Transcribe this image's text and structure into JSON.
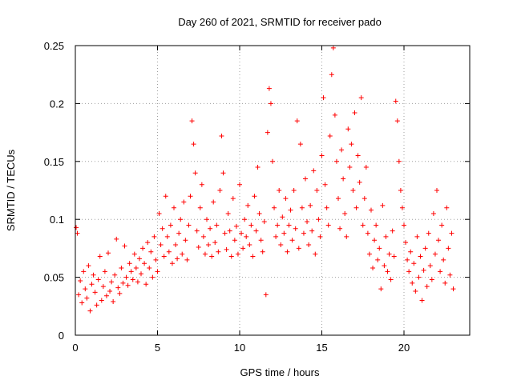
{
  "chart_data": {
    "type": "scatter",
    "title": "Day 260 of 2021, SRMTID for receiver pado",
    "xlabel": "GPS time / hours",
    "ylabel": "SRMTID / TECUs",
    "xlim": [
      0,
      24
    ],
    "ylim": [
      0,
      0.25
    ],
    "xticks": [
      0,
      5,
      10,
      15,
      20
    ],
    "xtick_labels": [
      "0",
      "5",
      "10",
      "15",
      "20"
    ],
    "yticks": [
      0,
      0.05,
      0.1,
      0.15,
      0.2,
      0.25
    ],
    "ytick_labels": [
      "0",
      "0.05",
      "0.1",
      "0.15",
      "0.2",
      "0.25"
    ],
    "grid": true,
    "marker": "+",
    "point_color": "#ff0000",
    "series": [
      {
        "name": "SRMTID",
        "points": [
          [
            0.05,
            0.093
          ],
          [
            0.12,
            0.088
          ],
          [
            0.2,
            0.035
          ],
          [
            0.3,
            0.047
          ],
          [
            0.4,
            0.028
          ],
          [
            0.5,
            0.055
          ],
          [
            0.6,
            0.04
          ],
          [
            0.7,
            0.032
          ],
          [
            0.8,
            0.06
          ],
          [
            0.9,
            0.021
          ],
          [
            1.0,
            0.044
          ],
          [
            1.1,
            0.052
          ],
          [
            1.2,
            0.037
          ],
          [
            1.3,
            0.026
          ],
          [
            1.4,
            0.048
          ],
          [
            1.5,
            0.068
          ],
          [
            1.6,
            0.03
          ],
          [
            1.7,
            0.042
          ],
          [
            1.8,
            0.055
          ],
          [
            1.9,
            0.034
          ],
          [
            2.0,
            0.071
          ],
          [
            2.1,
            0.038
          ],
          [
            2.2,
            0.046
          ],
          [
            2.3,
            0.029
          ],
          [
            2.4,
            0.052
          ],
          [
            2.5,
            0.083
          ],
          [
            2.6,
            0.041
          ],
          [
            2.7,
            0.036
          ],
          [
            2.8,
            0.058
          ],
          [
            2.9,
            0.045
          ],
          [
            3.0,
            0.077
          ],
          [
            3.1,
            0.05
          ],
          [
            3.2,
            0.043
          ],
          [
            3.3,
            0.062
          ],
          [
            3.4,
            0.055
          ],
          [
            3.5,
            0.048
          ],
          [
            3.6,
            0.07
          ],
          [
            3.7,
            0.058
          ],
          [
            3.8,
            0.046
          ],
          [
            3.9,
            0.066
          ],
          [
            4.0,
            0.053
          ],
          [
            4.1,
            0.075
          ],
          [
            4.2,
            0.062
          ],
          [
            4.3,
            0.044
          ],
          [
            4.4,
            0.08
          ],
          [
            4.5,
            0.058
          ],
          [
            4.6,
            0.072
          ],
          [
            4.7,
            0.05
          ],
          [
            4.8,
            0.085
          ],
          [
            4.9,
            0.065
          ],
          [
            5.0,
            0.055
          ],
          [
            5.1,
            0.105
          ],
          [
            5.2,
            0.078
          ],
          [
            5.3,
            0.092
          ],
          [
            5.4,
            0.068
          ],
          [
            5.5,
            0.12
          ],
          [
            5.6,
            0.085
          ],
          [
            5.7,
            0.072
          ],
          [
            5.8,
            0.095
          ],
          [
            5.9,
            0.062
          ],
          [
            6.0,
            0.11
          ],
          [
            6.1,
            0.078
          ],
          [
            6.2,
            0.066
          ],
          [
            6.3,
            0.088
          ],
          [
            6.4,
            0.1
          ],
          [
            6.5,
            0.07
          ],
          [
            6.6,
            0.115
          ],
          [
            6.7,
            0.082
          ],
          [
            6.8,
            0.065
          ],
          [
            6.9,
            0.095
          ],
          [
            7.0,
            0.12
          ],
          [
            7.1,
            0.185
          ],
          [
            7.2,
            0.165
          ],
          [
            7.3,
            0.14
          ],
          [
            7.4,
            0.09
          ],
          [
            7.5,
            0.076
          ],
          [
            7.6,
            0.11
          ],
          [
            7.7,
            0.13
          ],
          [
            7.8,
            0.085
          ],
          [
            7.9,
            0.07
          ],
          [
            8.0,
            0.1
          ],
          [
            8.1,
            0.078
          ],
          [
            8.2,
            0.092
          ],
          [
            8.3,
            0.068
          ],
          [
            8.4,
            0.115
          ],
          [
            8.5,
            0.08
          ],
          [
            8.6,
            0.095
          ],
          [
            8.7,
            0.072
          ],
          [
            8.8,
            0.125
          ],
          [
            8.9,
            0.172
          ],
          [
            9.0,
            0.14
          ],
          [
            9.1,
            0.088
          ],
          [
            9.2,
            0.074
          ],
          [
            9.3,
            0.105
          ],
          [
            9.4,
            0.09
          ],
          [
            9.5,
            0.068
          ],
          [
            9.6,
            0.118
          ],
          [
            9.7,
            0.082
          ],
          [
            9.8,
            0.094
          ],
          [
            9.9,
            0.07
          ],
          [
            10.0,
            0.13
          ],
          [
            10.1,
            0.088
          ],
          [
            10.2,
            0.075
          ],
          [
            10.3,
            0.1
          ],
          [
            10.4,
            0.085
          ],
          [
            10.5,
            0.112
          ],
          [
            10.6,
            0.078
          ],
          [
            10.7,
            0.095
          ],
          [
            10.8,
            0.068
          ],
          [
            10.9,
            0.12
          ],
          [
            11.0,
            0.09
          ],
          [
            11.1,
            0.145
          ],
          [
            11.2,
            0.105
          ],
          [
            11.3,
            0.082
          ],
          [
            11.4,
            0.072
          ],
          [
            11.5,
            0.098
          ],
          [
            11.6,
            0.035
          ],
          [
            11.7,
            0.175
          ],
          [
            11.8,
            0.213
          ],
          [
            11.9,
            0.2
          ],
          [
            12.0,
            0.15
          ],
          [
            12.1,
            0.11
          ],
          [
            12.2,
            0.085
          ],
          [
            12.3,
            0.095
          ],
          [
            12.4,
            0.125
          ],
          [
            12.5,
            0.078
          ],
          [
            12.6,
            0.102
          ],
          [
            12.7,
            0.088
          ],
          [
            12.8,
            0.118
          ],
          [
            12.9,
            0.072
          ],
          [
            13.0,
            0.095
          ],
          [
            13.1,
            0.108
          ],
          [
            13.2,
            0.082
          ],
          [
            13.3,
            0.125
          ],
          [
            13.4,
            0.092
          ],
          [
            13.5,
            0.185
          ],
          [
            13.6,
            0.075
          ],
          [
            13.7,
            0.165
          ],
          [
            13.8,
            0.11
          ],
          [
            13.9,
            0.088
          ],
          [
            14.0,
            0.135
          ],
          [
            14.1,
            0.098
          ],
          [
            14.2,
            0.078
          ],
          [
            14.3,
            0.112
          ],
          [
            14.4,
            0.09
          ],
          [
            14.5,
            0.142
          ],
          [
            14.6,
            0.07
          ],
          [
            14.7,
            0.125
          ],
          [
            14.8,
            0.1
          ],
          [
            14.9,
            0.085
          ],
          [
            15.0,
            0.155
          ],
          [
            15.1,
            0.205
          ],
          [
            15.2,
            0.13
          ],
          [
            15.3,
            0.11
          ],
          [
            15.4,
            0.095
          ],
          [
            15.5,
            0.172
          ],
          [
            15.6,
            0.225
          ],
          [
            15.7,
            0.248
          ],
          [
            15.8,
            0.19
          ],
          [
            15.9,
            0.15
          ],
          [
            16.0,
            0.118
          ],
          [
            16.1,
            0.092
          ],
          [
            16.2,
            0.16
          ],
          [
            16.3,
            0.135
          ],
          [
            16.4,
            0.105
          ],
          [
            16.5,
            0.085
          ],
          [
            16.6,
            0.178
          ],
          [
            16.7,
            0.145
          ],
          [
            16.8,
            0.165
          ],
          [
            16.9,
            0.125
          ],
          [
            17.0,
            0.192
          ],
          [
            17.1,
            0.11
          ],
          [
            17.2,
            0.155
          ],
          [
            17.3,
            0.132
          ],
          [
            17.4,
            0.205
          ],
          [
            17.5,
            0.095
          ],
          [
            17.6,
            0.118
          ],
          [
            17.7,
            0.145
          ],
          [
            17.8,
            0.088
          ],
          [
            17.9,
            0.07
          ],
          [
            18.0,
            0.108
          ],
          [
            18.1,
            0.058
          ],
          [
            18.2,
            0.082
          ],
          [
            18.3,
            0.095
          ],
          [
            18.4,
            0.065
          ],
          [
            18.5,
            0.075
          ],
          [
            18.6,
            0.04
          ],
          [
            18.7,
            0.112
          ],
          [
            18.8,
            0.06
          ],
          [
            18.9,
            0.085
          ],
          [
            19.0,
            0.055
          ],
          [
            19.1,
            0.07
          ],
          [
            19.2,
            0.048
          ],
          [
            19.3,
            0.09
          ],
          [
            19.4,
            0.068
          ],
          [
            19.5,
            0.202
          ],
          [
            19.6,
            0.185
          ],
          [
            19.7,
            0.15
          ],
          [
            19.8,
            0.125
          ],
          [
            19.9,
            0.11
          ],
          [
            20.0,
            0.095
          ],
          [
            20.1,
            0.08
          ],
          [
            20.2,
            0.065
          ],
          [
            20.3,
            0.055
          ],
          [
            20.4,
            0.072
          ],
          [
            20.5,
            0.045
          ],
          [
            20.6,
            0.062
          ],
          [
            20.7,
            0.038
          ],
          [
            20.8,
            0.085
          ],
          [
            20.9,
            0.05
          ],
          [
            21.0,
            0.068
          ],
          [
            21.1,
            0.03
          ],
          [
            21.2,
            0.056
          ],
          [
            21.3,
            0.075
          ],
          [
            21.4,
            0.042
          ],
          [
            21.5,
            0.088
          ],
          [
            21.6,
            0.06
          ],
          [
            21.7,
            0.048
          ],
          [
            21.8,
            0.105
          ],
          [
            21.9,
            0.07
          ],
          [
            22.0,
            0.125
          ],
          [
            22.1,
            0.082
          ],
          [
            22.2,
            0.055
          ],
          [
            22.3,
            0.095
          ],
          [
            22.4,
            0.065
          ],
          [
            22.5,
            0.045
          ],
          [
            22.6,
            0.11
          ],
          [
            22.7,
            0.075
          ],
          [
            22.8,
            0.052
          ],
          [
            22.9,
            0.088
          ],
          [
            23.0,
            0.04
          ]
        ]
      }
    ]
  }
}
